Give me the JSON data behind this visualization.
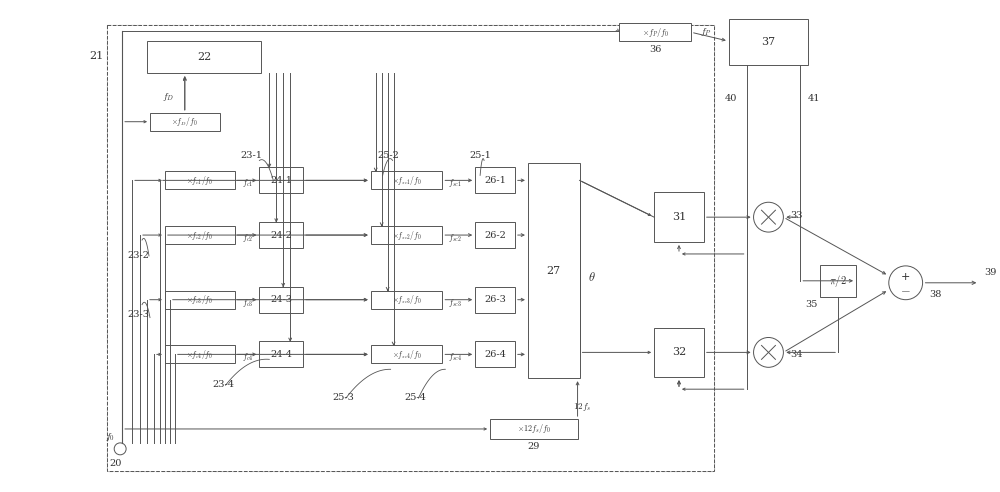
{
  "bg_color": "#ffffff",
  "line_color": "#555555",
  "box_color": "#ffffff",
  "box_edge": "#555555",
  "text_color": "#333333",
  "figsize": [
    10.0,
    4.92
  ],
  "dpi": 100
}
